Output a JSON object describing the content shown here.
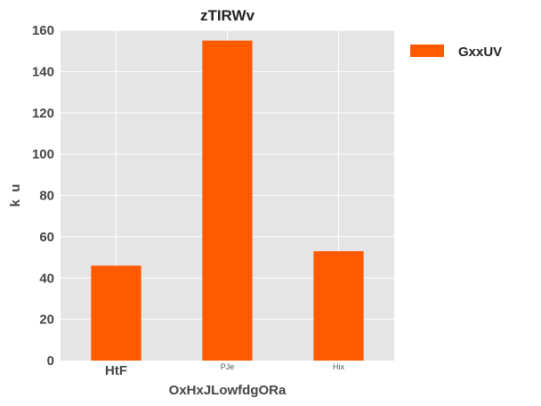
{
  "chart_data": {
    "type": "bar",
    "title": "zTIRWv",
    "xlabel": "OxHxJLowfdgORa",
    "ylabel": "k  u",
    "categories": [
      "HtF",
      "PJe",
      "Hix"
    ],
    "series": [
      {
        "name": "GxxUV",
        "values": [
          46,
          155,
          53
        ],
        "color": "#ff5a00"
      }
    ],
    "ylim": [
      0,
      160
    ],
    "yticks": [
      0,
      20,
      40,
      60,
      80,
      100,
      120,
      140,
      160
    ],
    "grid": true,
    "legend": "upper-right-outside",
    "background": "#e5e5e5",
    "grid_color": "#ffffff"
  }
}
